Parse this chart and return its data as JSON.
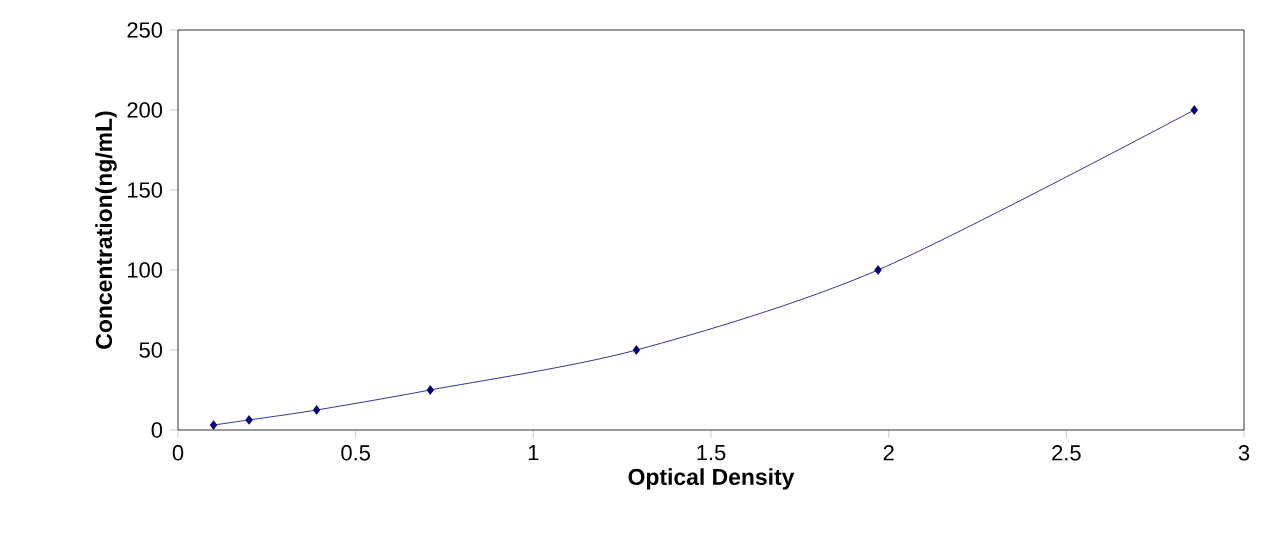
{
  "chart_data": {
    "type": "line",
    "xlabel": "Optical Density",
    "ylabel": "Concentration(ng/mL)",
    "x": [
      0.1,
      0.2,
      0.39,
      0.71,
      1.29,
      1.97,
      2.86
    ],
    "values": [
      3.1,
      6.3,
      12.5,
      25,
      50,
      100,
      200
    ],
    "color": "#00007f",
    "marker": "diamond",
    "line_style": "solid",
    "grid": false,
    "xlim": [
      0,
      3
    ],
    "ylim": [
      0,
      250
    ],
    "xticks": [
      0,
      0.5,
      1,
      1.5,
      2,
      2.5,
      3
    ],
    "yticks": [
      0,
      50,
      100,
      150,
      200,
      250
    ]
  }
}
